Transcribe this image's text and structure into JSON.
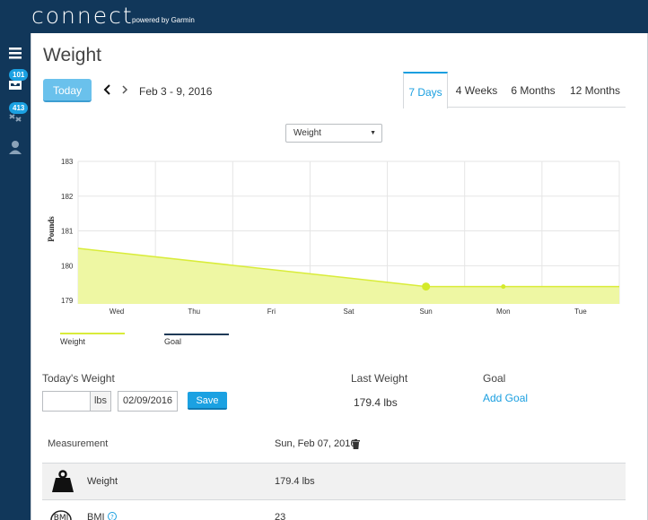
{
  "header": {
    "logo_text": "connect",
    "logo_sub": "powered by Garmin"
  },
  "sidebar": {
    "items": [
      {
        "icon": "menu-icon"
      },
      {
        "icon": "inbox-icon",
        "badge": "101"
      },
      {
        "icon": "connections-icon",
        "badge": "413"
      },
      {
        "icon": "user-icon"
      }
    ]
  },
  "page": {
    "title": "Weight"
  },
  "nav": {
    "today_label": "Today",
    "prev": "‹",
    "next": "›",
    "date_range": "Feb 3 - 9, 2016"
  },
  "tabs": [
    {
      "label": "7 Days",
      "active": true
    },
    {
      "label": "4 Weeks"
    },
    {
      "label": "6 Months"
    },
    {
      "label": "12 Months"
    }
  ],
  "metric_select": {
    "value": "Weight"
  },
  "chart_data": {
    "type": "area",
    "ylabel": "Pounds",
    "categories": [
      "Wed",
      "Thu",
      "Fri",
      "Sat",
      "Sun",
      "Mon",
      "Tue"
    ],
    "yticks": [
      "183",
      "182",
      "181",
      "180",
      "179"
    ],
    "ylim": [
      178.9,
      183
    ],
    "series": [
      {
        "name": "Weight",
        "points": [
          {
            "x": "Tue",
            "y": 180.5
          },
          {
            "x": "Sun",
            "y": 179.4
          },
          {
            "x": "Mon",
            "y": 179.4
          },
          {
            "x": "Wed",
            "y": 179.4
          }
        ],
        "markers": [
          "Sun",
          "Mon"
        ]
      }
    ],
    "legend": [
      {
        "name": "Weight",
        "color": "#d9ec3a"
      },
      {
        "name": "Goal",
        "color": "#1f3a57"
      }
    ],
    "colors": {
      "area_fill": "#eef7a3",
      "area_line": "#d9ec3a",
      "grid": "#e5e5e5"
    }
  },
  "today_weight": {
    "label": "Today's Weight",
    "weight_value": "",
    "unit": "lbs",
    "date": "02/09/2016",
    "save_label": "Save"
  },
  "last_weight": {
    "label": "Last Weight",
    "value": "179.4 lbs"
  },
  "goal": {
    "label": "Goal",
    "link": "Add Goal"
  },
  "measurement": {
    "header_label": "Measurement",
    "header_date": "Sun, Feb 07, 2016",
    "rows": [
      {
        "icon": "weight-icon",
        "label": "Weight",
        "value": "179.4  lbs"
      },
      {
        "icon": "bmi-icon",
        "label": "BMI",
        "value": "23"
      }
    ]
  },
  "colors": {
    "brand": "#11375a",
    "accent": "#1a9fe0"
  }
}
